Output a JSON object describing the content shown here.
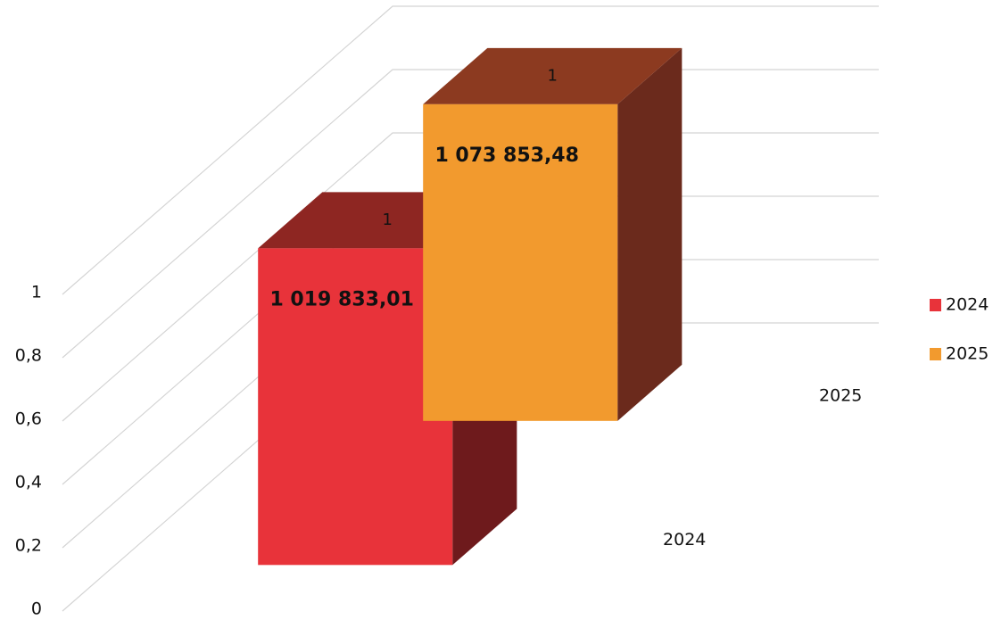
{
  "chart_data": {
    "type": "bar3d",
    "ylim": [
      0,
      1
    ],
    "yticks": [
      0,
      {
        "value": 0.2,
        "label": "0,2"
      },
      {
        "value": 0.4,
        "label": "0,4"
      },
      {
        "value": 0.6,
        "label": "0,6"
      },
      {
        "value": 0.8,
        "label": "0,8"
      },
      1
    ],
    "grid": true,
    "legend": "right",
    "series": [
      {
        "name": "2024",
        "color": "#e8333a",
        "side_color": "#6e1a1c",
        "top_color": "#8e2622",
        "values": [
          1
        ],
        "label": "1 019 833,01"
      },
      {
        "name": "2025",
        "color": "#f29a2e",
        "side_color": "#6b2a1c",
        "top_color": "#8c3a20",
        "values": [
          1
        ],
        "label": "1 073 853,48"
      }
    ]
  }
}
